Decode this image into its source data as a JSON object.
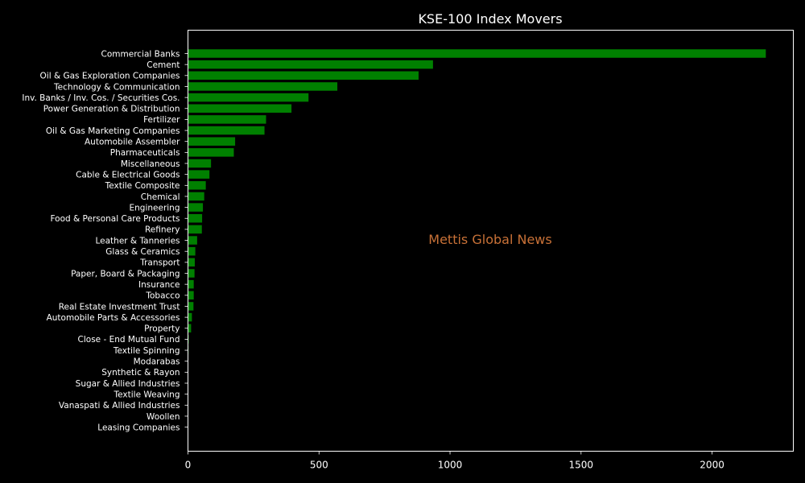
{
  "chart_data": {
    "type": "bar",
    "orientation": "horizontal",
    "title": "KSE-100 Index Movers",
    "xlabel": "",
    "ylabel": "",
    "xlim": [
      0,
      2310
    ],
    "xticks": [
      0,
      500,
      1000,
      1500,
      2000
    ],
    "grid": false,
    "watermark": "Mettis Global News",
    "colors": {
      "bar": "#008000",
      "background": "#000000",
      "text": "#ffffff",
      "watermark": "#c87137"
    },
    "categories": [
      "Commercial Banks",
      "Cement",
      "Oil & Gas Exploration Companies",
      "Technology & Communication",
      "Inv. Banks / Inv. Cos. / Securities Cos.",
      "Power Generation & Distribution",
      "Fertilizer",
      "Oil & Gas Marketing Companies",
      "Automobile Assembler",
      "Pharmaceuticals",
      "Miscellaneous",
      "Cable & Electrical Goods",
      "Textile Composite",
      "Chemical",
      "Engineering",
      "Food & Personal Care Products",
      "Refinery",
      "Leather & Tanneries",
      "Glass & Ceramics",
      "Transport",
      "Paper, Board & Packaging",
      "Insurance",
      "Tobacco",
      "Real Estate Investment Trust",
      "Automobile Parts & Accessories",
      "Property",
      "Close - End Mutual Fund",
      "Textile Spinning",
      "Modarabas",
      "Synthetic & Rayon",
      "Sugar & Allied Industries",
      "Textile Weaving",
      "Vanaspati & Allied Industries",
      "Woollen",
      "Leasing Companies"
    ],
    "values": [
      2205,
      935,
      880,
      570,
      460,
      395,
      298,
      292,
      180,
      175,
      88,
      82,
      68,
      62,
      57,
      54,
      53,
      35,
      28,
      26,
      25,
      22,
      22,
      21,
      15,
      12,
      3,
      2,
      1,
      1,
      1,
      1,
      1,
      1,
      0
    ]
  }
}
